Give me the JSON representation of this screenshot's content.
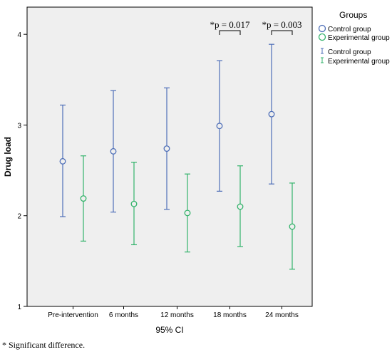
{
  "chart_data": {
    "type": "errorbar",
    "categories": [
      "Pre-intervention",
      "6 months",
      "12 months",
      "18 months",
      "24 months"
    ],
    "ylabel": "Drug load",
    "xlabel": "95% CI",
    "ylim": [
      1,
      4.3
    ],
    "yticks": [
      "1",
      "2",
      "3",
      "4"
    ],
    "grid": false,
    "legend_placement": "right",
    "legend_title": "Groups",
    "legend_markers": [
      "Control group",
      "Experimental group"
    ],
    "legend_bars": [
      "Control group",
      "Experimental group"
    ],
    "series": [
      {
        "name": "Control group",
        "color": "#4f6fb8",
        "mean": [
          2.6,
          2.71,
          2.74,
          2.99,
          3.12
        ],
        "lower": [
          1.99,
          2.04,
          2.07,
          2.27,
          2.35
        ],
        "upper": [
          3.22,
          3.38,
          3.41,
          3.71,
          3.89
        ]
      },
      {
        "name": "Experimental group",
        "color": "#33b36b",
        "mean": [
          2.19,
          2.13,
          2.03,
          2.1,
          1.88
        ],
        "lower": [
          1.72,
          1.68,
          1.6,
          1.66,
          1.41
        ],
        "upper": [
          2.66,
          2.59,
          2.46,
          2.55,
          2.36
        ]
      }
    ],
    "annotations": [
      {
        "category": "18 months",
        "text": "*p = 0.017"
      },
      {
        "category": "24 months",
        "text": "*p = 0.003"
      }
    ],
    "footnote": "* Significant difference."
  },
  "colors": {
    "plot_background": "#efefef",
    "control": "#4f6fb8",
    "experimental": "#33b36b"
  }
}
